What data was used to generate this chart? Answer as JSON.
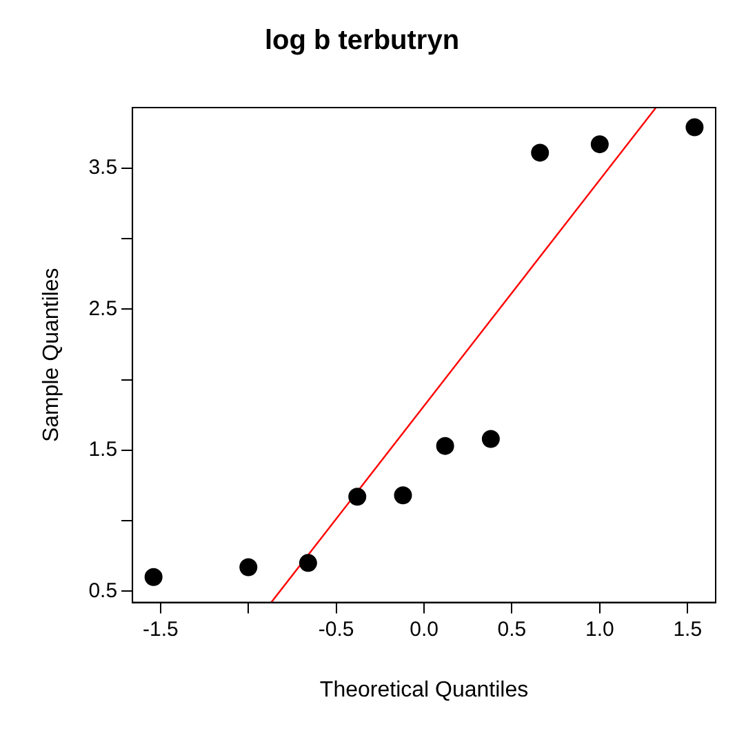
{
  "chart_data": {
    "type": "scatter",
    "title": "log b terbutryn",
    "xlabel": "Theoretical Quantiles",
    "ylabel": "Sample Quantiles",
    "series": [
      {
        "color": "#000000",
        "marker": "circle",
        "x": [
          -1.54,
          -1.0,
          -0.66,
          -0.38,
          -0.12,
          0.12,
          0.38,
          0.66,
          1.0,
          1.54
        ],
        "values": [
          0.6,
          0.67,
          0.7,
          1.17,
          1.18,
          1.53,
          1.58,
          3.61,
          3.67,
          3.79
        ]
      },
      {
        "type": "line",
        "color": "#ff0000",
        "x": [
          -0.87,
          1.32
        ],
        "values": [
          0.42,
          3.93
        ]
      }
    ],
    "xlim": [
      -1.66,
      1.66
    ],
    "ylim": [
      0.42,
      3.93
    ],
    "xticks": [
      -1.5,
      {
        "value": -1.0,
        "label": null
      },
      -0.5,
      {
        "value": 0.0,
        "label": "0.0"
      },
      0.5,
      {
        "value": 1.0,
        "label": "1.0"
      },
      1.5
    ],
    "yticks": [
      0.5,
      {
        "value": 1.0,
        "label": null
      },
      1.5,
      {
        "value": 2.0,
        "label": null
      },
      2.5,
      {
        "value": 3.0,
        "label": null
      },
      3.5
    ],
    "legend": false
  }
}
